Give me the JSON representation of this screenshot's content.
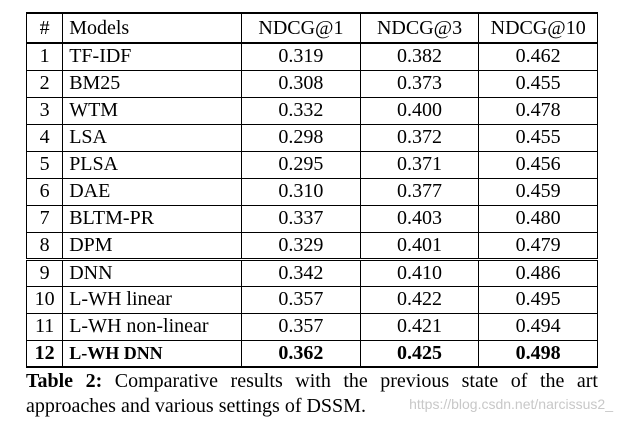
{
  "table": {
    "headers": [
      "#",
      "Models",
      "NDCG@1",
      "NDCG@3",
      "NDCG@10"
    ],
    "rows": [
      {
        "num": "1",
        "model": "TF-IDF",
        "ndcg1": "0.319",
        "ndcg3": "0.382",
        "ndcg10": "0.462"
      },
      {
        "num": "2",
        "model": "BM25",
        "ndcg1": "0.308",
        "ndcg3": "0.373",
        "ndcg10": "0.455"
      },
      {
        "num": "3",
        "model": "WTM",
        "ndcg1": "0.332",
        "ndcg3": "0.400",
        "ndcg10": "0.478"
      },
      {
        "num": "4",
        "model": "LSA",
        "ndcg1": "0.298",
        "ndcg3": "0.372",
        "ndcg10": "0.455"
      },
      {
        "num": "5",
        "model": "PLSA",
        "ndcg1": "0.295",
        "ndcg3": "0.371",
        "ndcg10": "0.456"
      },
      {
        "num": "6",
        "model": "DAE",
        "ndcg1": "0.310",
        "ndcg3": "0.377",
        "ndcg10": "0.459"
      },
      {
        "num": "7",
        "model": "BLTM-PR",
        "ndcg1": "0.337",
        "ndcg3": "0.403",
        "ndcg10": "0.480"
      },
      {
        "num": "8",
        "model": "DPM",
        "ndcg1": "0.329",
        "ndcg3": "0.401",
        "ndcg10": "0.479"
      },
      {
        "num": "9",
        "model": "DNN",
        "ndcg1": "0.342",
        "ndcg3": "0.410",
        "ndcg10": "0.486"
      },
      {
        "num": "10",
        "model": "L-WH linear",
        "ndcg1": "0.357",
        "ndcg3": "0.422",
        "ndcg10": "0.495"
      },
      {
        "num": "11",
        "model": "L-WH non-linear",
        "ndcg1": "0.357",
        "ndcg3": "0.421",
        "ndcg10": "0.494"
      },
      {
        "num": "12",
        "model": "L-WH DNN",
        "ndcg1": "0.362",
        "ndcg3": "0.425",
        "ndcg10": "0.498"
      }
    ]
  },
  "caption": {
    "label": "Table 2:",
    "text": " Comparative results with the previous state of the art approaches and various settings of DSSM."
  },
  "watermark": "https://blog.csdn.net/narcissus2_"
}
